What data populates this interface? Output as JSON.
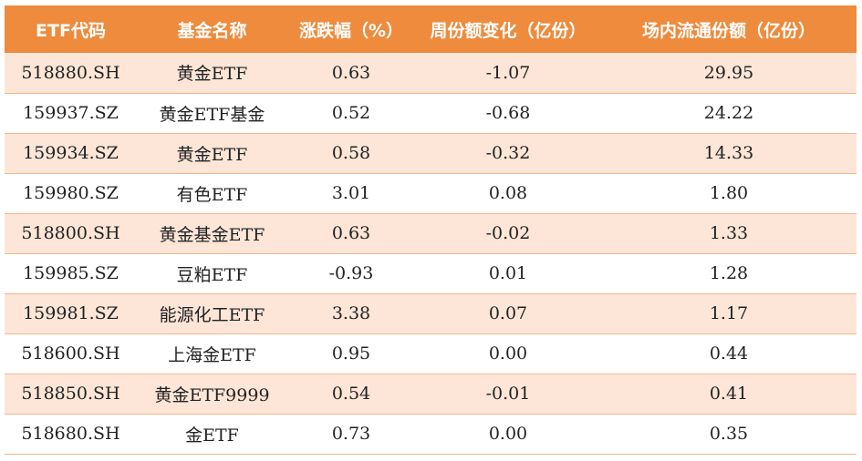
{
  "table": {
    "headers": [
      "ETF代码",
      "基金名称",
      "涨跌幅（%）",
      "周份额变化（亿份）",
      "场内流通份额（亿份）"
    ],
    "rows": [
      [
        "518880.SH",
        "黄金ETF",
        "0.63",
        "-1.07",
        "29.95"
      ],
      [
        "159937.SZ",
        "黄金ETF基金",
        "0.52",
        "-0.68",
        "24.22"
      ],
      [
        "159934.SZ",
        "黄金ETF",
        "0.58",
        "-0.32",
        "14.33"
      ],
      [
        "159980.SZ",
        "有色ETF",
        "3.01",
        "0.08",
        "1.80"
      ],
      [
        "518800.SH",
        "黄金基金ETF",
        "0.63",
        "-0.02",
        "1.33"
      ],
      [
        "159985.SZ",
        "豆粕ETF",
        "-0.93",
        "0.01",
        "1.28"
      ],
      [
        "159981.SZ",
        "能源化工ETF",
        "3.38",
        "0.07",
        "1.17"
      ],
      [
        "518600.SH",
        "上海金ETF",
        "0.95",
        "0.00",
        "0.44"
      ],
      [
        "518850.SH",
        "黄金ETF9999",
        "0.54",
        "-0.01",
        "0.41"
      ],
      [
        "518680.SH",
        "金ETF",
        "0.73",
        "0.00",
        "0.35"
      ]
    ]
  },
  "colors": {
    "header_bg": "#ee8b3d",
    "header_text": "#ffffff",
    "stripe_bg": "#fde6d8",
    "row_border": "#f2b58b"
  }
}
